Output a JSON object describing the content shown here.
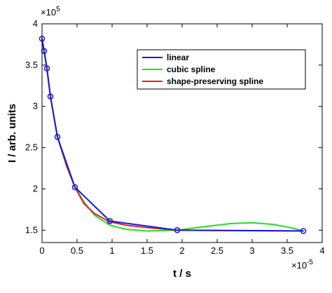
{
  "chart_data": {
    "type": "line",
    "title": "",
    "xlabel": "t / s",
    "ylabel": "I / arb. units",
    "x_exponent_label": "×10",
    "x_exponent_power": "-5",
    "y_exponent_label": "×10",
    "y_exponent_power": "5",
    "xlim": [
      0,
      4
    ],
    "ylim": [
      1.35,
      4
    ],
    "x_ticks": [
      "0",
      "0.5",
      "1",
      "1.5",
      "2",
      "2.5",
      "3",
      "3.5",
      "4"
    ],
    "y_ticks": [
      "1.5",
      "2",
      "2.5",
      "3",
      "3.5",
      "4"
    ],
    "grid": false,
    "legend_position": "top-right",
    "points": {
      "x": [
        0,
        0.03,
        0.07,
        0.12,
        0.22,
        0.47,
        0.97,
        1.93,
        3.73
      ],
      "y": [
        3.82,
        3.67,
        3.46,
        3.12,
        2.63,
        2.02,
        1.61,
        1.5,
        1.49
      ],
      "marker": "circle",
      "color": "#1f1fd6"
    },
    "series": [
      {
        "name": "linear",
        "color": "#1a1ad8",
        "x": [
          0,
          0.03,
          0.07,
          0.12,
          0.22,
          0.47,
          0.97,
          1.93,
          3.73
        ],
        "y": [
          3.82,
          3.67,
          3.46,
          3.12,
          2.63,
          2.02,
          1.61,
          1.5,
          1.49
        ]
      },
      {
        "name": "cubic spline",
        "color": "#22dd22",
        "x": [
          0,
          0.03,
          0.07,
          0.12,
          0.22,
          0.35,
          0.47,
          0.6,
          0.75,
          0.97,
          1.2,
          1.5,
          1.93,
          2.3,
          2.7,
          3.0,
          3.3,
          3.55,
          3.73
        ],
        "y": [
          3.82,
          3.67,
          3.46,
          3.12,
          2.63,
          2.28,
          2.02,
          1.84,
          1.68,
          1.56,
          1.51,
          1.49,
          1.5,
          1.54,
          1.58,
          1.59,
          1.57,
          1.53,
          1.49
        ]
      },
      {
        "name": "shape-preserving spline",
        "color": "#dd2222",
        "x": [
          0,
          0.03,
          0.07,
          0.12,
          0.22,
          0.35,
          0.47,
          0.6,
          0.75,
          0.97,
          1.2,
          1.5,
          1.93,
          2.5,
          3.0,
          3.5,
          3.73
        ],
        "y": [
          3.82,
          3.67,
          3.46,
          3.12,
          2.63,
          2.28,
          2.02,
          1.82,
          1.7,
          1.6,
          1.56,
          1.53,
          1.5,
          1.495,
          1.493,
          1.491,
          1.49
        ]
      }
    ]
  }
}
